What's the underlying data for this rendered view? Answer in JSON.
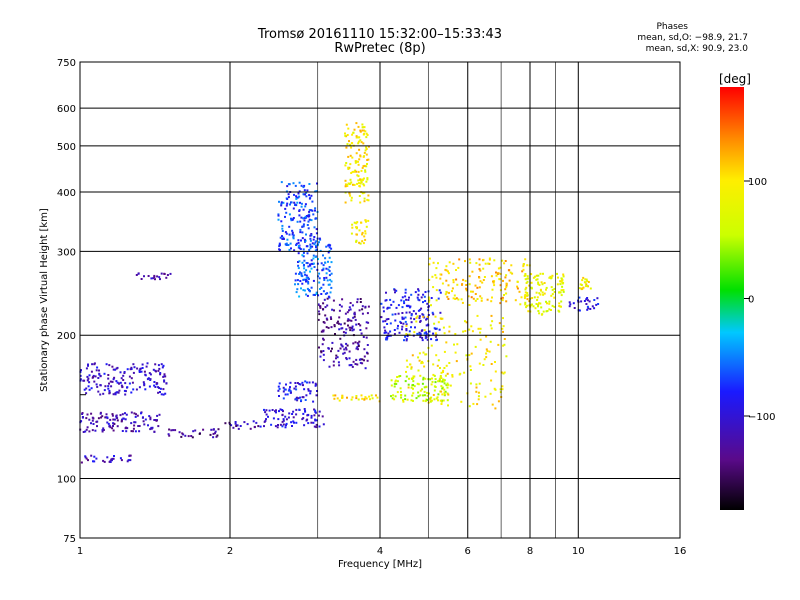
{
  "header": {
    "title_line1": "Tromsø 20161110 15:32:00–15:33:43",
    "title_line2": "RwPretec (8p)"
  },
  "phases": {
    "heading": "Phases",
    "line_o": "mean, sd,O: −98.9, 21.7",
    "line_x": "mean, sd,X:  90.9, 23.0"
  },
  "colorbar": {
    "label": "[deg]",
    "ticks": [
      "100",
      "0",
      "−100"
    ],
    "tick_values": [
      100,
      0,
      -100
    ],
    "range": [
      -180,
      180
    ]
  },
  "chart_data": {
    "type": "scatter",
    "xlabel": "Frequency [MHz]",
    "ylabel": "Stationary phase Virtual Height [km]",
    "xscale": "log",
    "yscale": "log",
    "xlim": [
      1,
      16
    ],
    "ylim": [
      75,
      750
    ],
    "x_ticks": [
      1,
      2,
      4,
      6,
      8,
      10,
      16
    ],
    "x_minor": [
      3,
      5,
      7,
      9
    ],
    "y_ticks": [
      75,
      100,
      200,
      300,
      400,
      500,
      600,
      750
    ],
    "y_minor": [
      150
    ],
    "point_color_by": "phase [deg]",
    "clusters": [
      {
        "x": [
          1.0,
          1.28
        ],
        "y": [
          108,
          112
        ],
        "phase": -110
      },
      {
        "x": [
          1.0,
          1.45
        ],
        "y": [
          125,
          138
        ],
        "phase": -115
      },
      {
        "x": [
          1.0,
          1.5
        ],
        "y": [
          150,
          175
        ],
        "phase": -105
      },
      {
        "x": [
          1.3,
          1.55
        ],
        "y": [
          262,
          270
        ],
        "phase": -120
      },
      {
        "x": [
          1.5,
          1.9
        ],
        "y": [
          122,
          127
        ],
        "phase": -135
      },
      {
        "x": [
          1.95,
          2.3
        ],
        "y": [
          127,
          132
        ],
        "phase": -120
      },
      {
        "x": [
          2.3,
          3.1
        ],
        "y": [
          128,
          140
        ],
        "phase": -100
      },
      {
        "x": [
          2.5,
          3.0
        ],
        "y": [
          145,
          160
        ],
        "phase": -90
      },
      {
        "x": [
          2.5,
          3.0
        ],
        "y": [
          300,
          420
        ],
        "phase": -70
      },
      {
        "x": [
          2.7,
          3.2
        ],
        "y": [
          240,
          320
        ],
        "phase": -60
      },
      {
        "x": [
          3.0,
          3.8
        ],
        "y": [
          170,
          240
        ],
        "phase": -125
      },
      {
        "x": [
          3.5,
          3.8
        ],
        "y": [
          310,
          350
        ],
        "phase": 90
      },
      {
        "x": [
          3.4,
          3.8
        ],
        "y": [
          380,
          560
        ],
        "phase": 95
      },
      {
        "x": [
          3.1,
          4.0
        ],
        "y": [
          145,
          150
        ],
        "phase": 100
      },
      {
        "x": [
          4.0,
          5.3
        ],
        "y": [
          195,
          250
        ],
        "phase": -90
      },
      {
        "x": [
          4.2,
          5.5
        ],
        "y": [
          145,
          165
        ],
        "phase": 60
      },
      {
        "x": [
          4.5,
          7.2
        ],
        "y": [
          140,
          220
        ],
        "phase": 95
      },
      {
        "x": [
          5.0,
          8.0
        ],
        "y": [
          230,
          290
        ],
        "phase": 110
      },
      {
        "x": [
          7.8,
          9.4
        ],
        "y": [
          220,
          270
        ],
        "phase": 80
      },
      {
        "x": [
          9.6,
          11.0
        ],
        "y": [
          225,
          240
        ],
        "phase": -95
      },
      {
        "x": [
          10.0,
          10.6
        ],
        "y": [
          250,
          265
        ],
        "phase": 90
      }
    ]
  }
}
